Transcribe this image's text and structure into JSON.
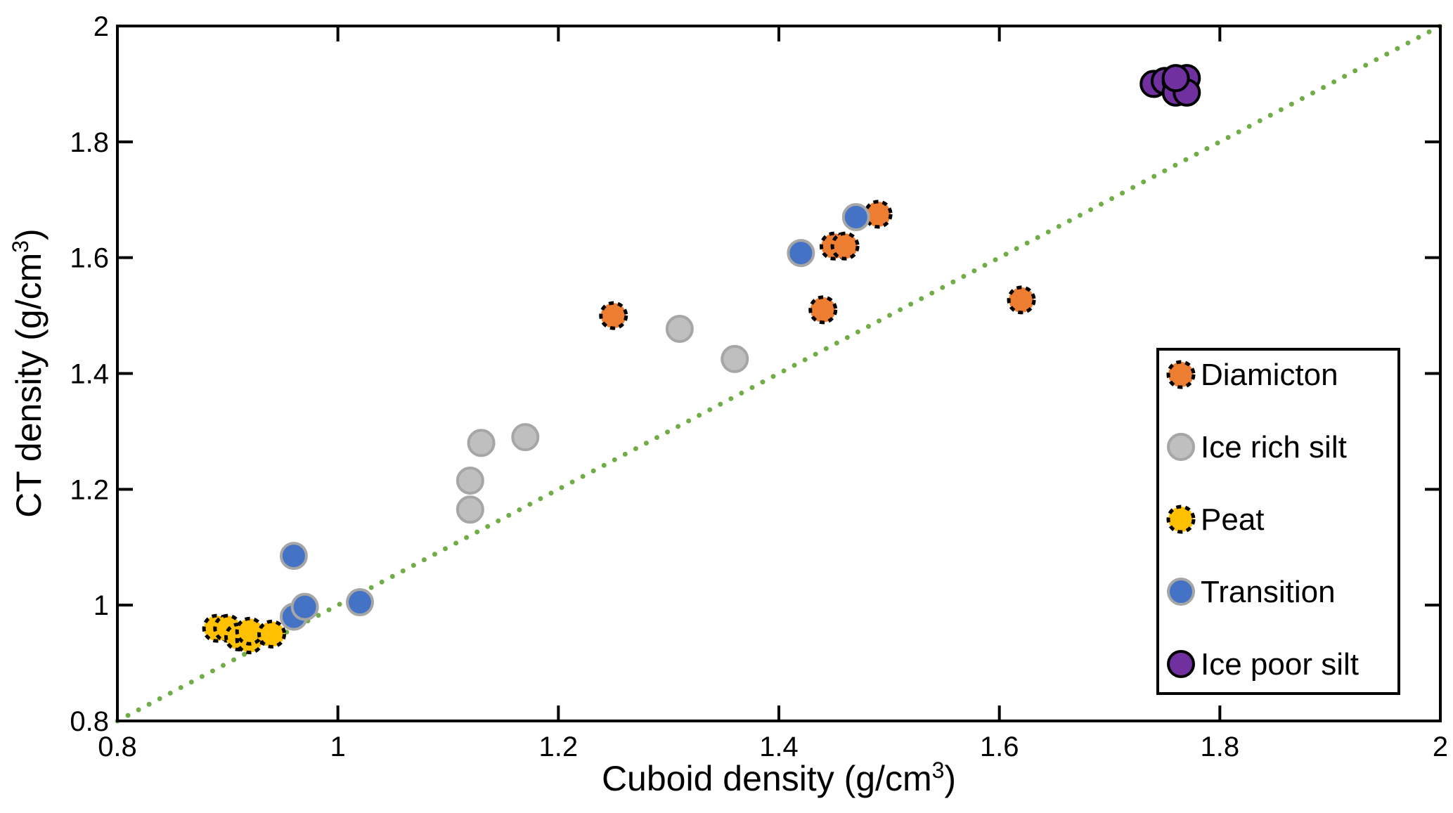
{
  "chart_data": {
    "type": "scatter",
    "title": "",
    "xlabel": "Cuboid density (g/cm",
    "ylabel": "CT density (g/cm",
    "unit_superscript": "3",
    "label_close": ")",
    "xlim": [
      0.8,
      2
    ],
    "ylim": [
      0.8,
      2
    ],
    "xticks": [
      "0.8",
      "1",
      "1.2",
      "1.4",
      "1.6",
      "1.8",
      "2"
    ],
    "yticks": [
      "0.8",
      "1",
      "1.2",
      "1.4",
      "1.6",
      "1.8",
      "2"
    ],
    "grid": false,
    "legend_position": "bottom-right",
    "reference_line": {
      "label": "1:1 line",
      "from": [
        0.8,
        0.8
      ],
      "to": [
        2,
        2
      ],
      "color": "#70ad47",
      "style": "dotted"
    },
    "series": [
      {
        "name": "Diamicton",
        "fill": "#ed7d31",
        "stroke": "#000000",
        "dashed": true,
        "points": [
          [
            1.25,
            1.5
          ],
          [
            1.44,
            1.51
          ],
          [
            1.45,
            1.62
          ],
          [
            1.46,
            1.62
          ],
          [
            1.49,
            1.675
          ],
          [
            1.62,
            1.527
          ]
        ]
      },
      {
        "name": "Ice rich silt",
        "fill": "#bfbfbf",
        "stroke": "#a6a6a6",
        "dashed": false,
        "points": [
          [
            1.12,
            1.165
          ],
          [
            1.12,
            1.215
          ],
          [
            1.13,
            1.28
          ],
          [
            1.17,
            1.29
          ],
          [
            1.31,
            1.477
          ],
          [
            1.36,
            1.425
          ]
        ]
      },
      {
        "name": "Peat",
        "fill": "#ffc000",
        "stroke": "#000000",
        "dashed": true,
        "points": [
          [
            0.89,
            0.96
          ],
          [
            0.9,
            0.96
          ],
          [
            0.91,
            0.945
          ],
          [
            0.92,
            0.94
          ],
          [
            0.92,
            0.955
          ],
          [
            0.94,
            0.95
          ]
        ]
      },
      {
        "name": "Transition",
        "fill": "#4472c4",
        "stroke": "#a6a6a6",
        "dashed": false,
        "points": [
          [
            0.96,
            1.085
          ],
          [
            0.96,
            0.98
          ],
          [
            0.97,
            0.997
          ],
          [
            1.02,
            1.005
          ],
          [
            1.42,
            1.608
          ],
          [
            1.47,
            1.67
          ]
        ]
      },
      {
        "name": "Ice poor silt",
        "fill": "#7030a0",
        "stroke": "#000000",
        "dashed": false,
        "points": [
          [
            1.74,
            1.9
          ],
          [
            1.75,
            1.905
          ],
          [
            1.77,
            1.91
          ],
          [
            1.76,
            1.905
          ],
          [
            1.76,
            1.885
          ],
          [
            1.77,
            1.885
          ],
          [
            1.76,
            1.91
          ]
        ]
      }
    ]
  }
}
